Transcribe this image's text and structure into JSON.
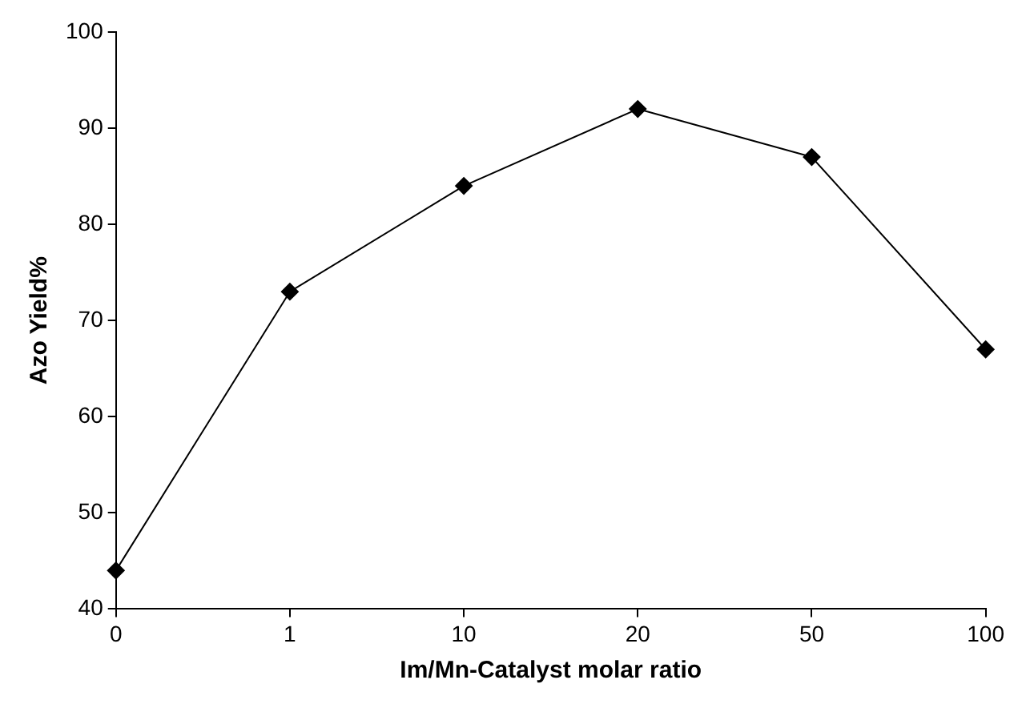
{
  "chart_data": {
    "type": "line",
    "xlabel": "Im/Mn-Catalyst molar ratio",
    "ylabel": "Azo Yield%",
    "categories": [
      "0",
      "1",
      "10",
      "20",
      "50",
      "100"
    ],
    "series": [
      {
        "color": "#000000",
        "values": [
          44,
          73,
          84,
          92,
          87,
          67
        ]
      }
    ],
    "ylim": [
      40,
      100
    ],
    "yticks": [
      40,
      50,
      60,
      70,
      80,
      90,
      100
    ],
    "grid": false,
    "legend": false,
    "marker": "diamond",
    "line_style": "solid"
  }
}
